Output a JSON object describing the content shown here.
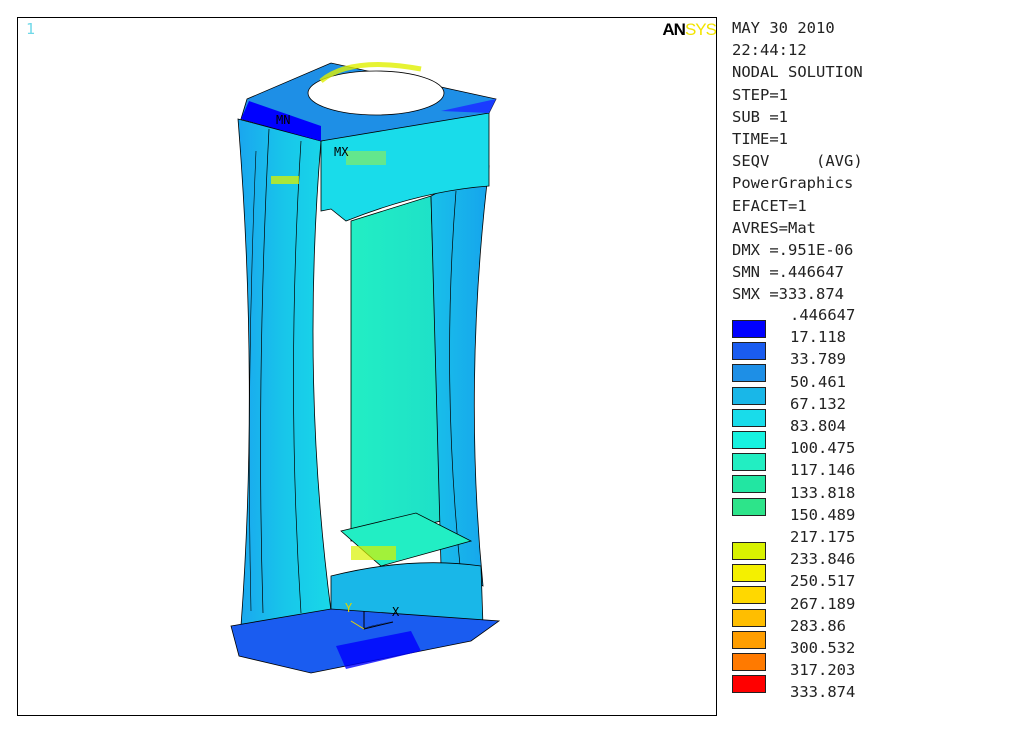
{
  "viewport": {
    "window_number": "1",
    "logo_part1": "AN",
    "logo_part2": "SYS",
    "labels": {
      "mn": "MN",
      "mx": "MX",
      "x_axis": "X",
      "y_axis": "Y"
    }
  },
  "info": {
    "date": "MAY 30 2010",
    "time": "22:44:12",
    "solution": "NODAL SOLUTION",
    "step": "STEP=1",
    "sub": "SUB =1",
    "time_value": "TIME=1",
    "result": "SEQV     (AVG)",
    "graphics": "PowerGraphics",
    "efacet": "EFACET=1",
    "avres": "AVRES=Mat",
    "dmx": "DMX =.951E-06",
    "smn": "SMN =.446647",
    "smx": "SMX =333.874"
  },
  "legend": {
    "values": [
      ".446647",
      "17.118",
      "33.789",
      "50.461",
      "67.132",
      "83.804",
      "100.475",
      "117.146",
      "133.818",
      "150.489",
      "217.175",
      "233.846",
      "250.517",
      "267.189",
      "283.86",
      "300.532",
      "317.203",
      "333.874"
    ],
    "boxes": [
      {
        "color": "#0000ff"
      },
      {
        "color": "#1a5cf0"
      },
      {
        "color": "#1e8fe6"
      },
      {
        "color": "#19b7e8"
      },
      {
        "color": "#19dcea"
      },
      {
        "color": "#16f2e0"
      },
      {
        "color": "#22eec2"
      },
      {
        "color": "#22e6a2"
      },
      {
        "color": "#2de48a"
      },
      null,
      {
        "color": "#d8f200"
      },
      {
        "color": "#f4f000"
      },
      {
        "color": "#ffd800"
      },
      {
        "color": "#ffbe00"
      },
      {
        "color": "#ff9e00"
      },
      {
        "color": "#ff7a00"
      },
      {
        "color": "#ff0000"
      },
      null
    ]
  }
}
